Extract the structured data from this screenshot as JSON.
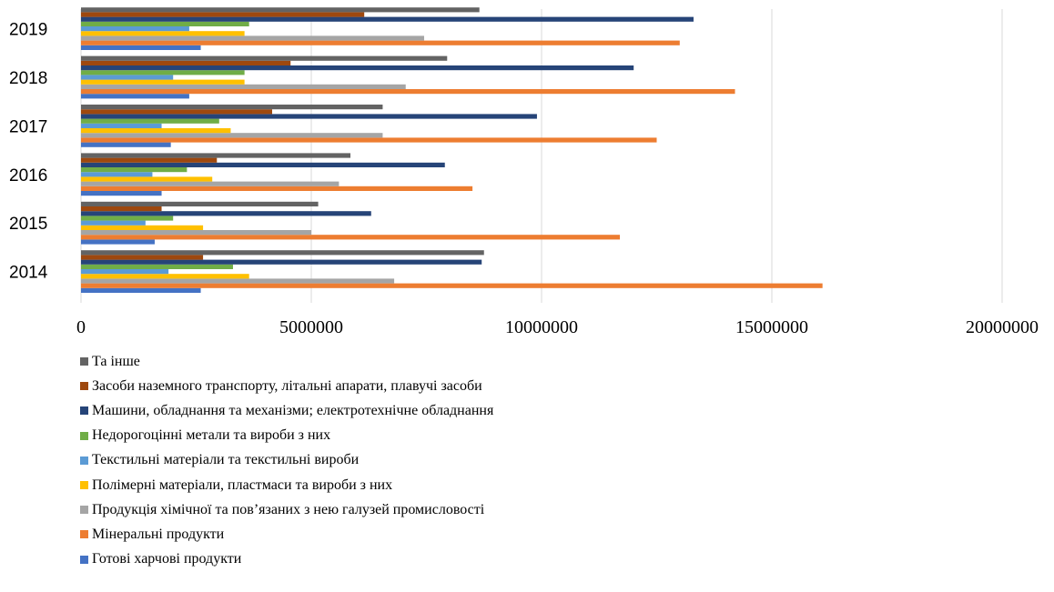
{
  "chart_data": {
    "type": "bar",
    "orientation": "horizontal",
    "categories": [
      "2014",
      "2015",
      "2016",
      "2017",
      "2018",
      "2019"
    ],
    "xlim": [
      0,
      20000000
    ],
    "xticks": [
      0,
      5000000,
      10000000,
      15000000,
      20000000
    ],
    "xtick_labels": [
      "0",
      "5000000",
      "10000000",
      "15000000",
      "20000000"
    ],
    "grid": true,
    "legend_position": "bottom",
    "series": [
      {
        "name": "Готові харчові продукти",
        "color": "#4472c4",
        "values": [
          2600000,
          1600000,
          1750000,
          1950000,
          2350000,
          2600000
        ]
      },
      {
        "name": "Мінеральні продукти",
        "color": "#ed7d31",
        "values": [
          16100000,
          11700000,
          8500000,
          12500000,
          14200000,
          13000000
        ]
      },
      {
        "name": "Продукція хімічної та пов’язаних з нею галузей промисловості",
        "color": "#a5a5a5",
        "values": [
          6800000,
          5000000,
          5600000,
          6550000,
          7050000,
          7450000
        ]
      },
      {
        "name": "Полімерні матеріали, пластмаси та вироби з них",
        "color": "#ffc000",
        "values": [
          3650000,
          2650000,
          2850000,
          3250000,
          3550000,
          3550000
        ]
      },
      {
        "name": "Текстильні матеріали та текстильні вироби",
        "color": "#5b9bd5",
        "values": [
          1900000,
          1400000,
          1550000,
          1750000,
          2000000,
          2350000
        ]
      },
      {
        "name": "Недорогоцінні метали та вироби з них",
        "color": "#70ad47",
        "values": [
          3300000,
          2000000,
          2300000,
          3000000,
          3550000,
          3650000
        ]
      },
      {
        "name": "Машини, обладнання та механізми; електротехнічне обладнання",
        "color": "#264478",
        "values": [
          8700000,
          6300000,
          7900000,
          9900000,
          12000000,
          13300000
        ]
      },
      {
        "name": "Засоби наземного транспорту, літальні апарати, плавучі засоби",
        "color": "#9e480e",
        "values": [
          2650000,
          1750000,
          2950000,
          4150000,
          4550000,
          6150000
        ]
      },
      {
        "name": "Та інше",
        "color": "#636363",
        "values": [
          8750000,
          5150000,
          5850000,
          6550000,
          7950000,
          8650000
        ]
      }
    ]
  }
}
